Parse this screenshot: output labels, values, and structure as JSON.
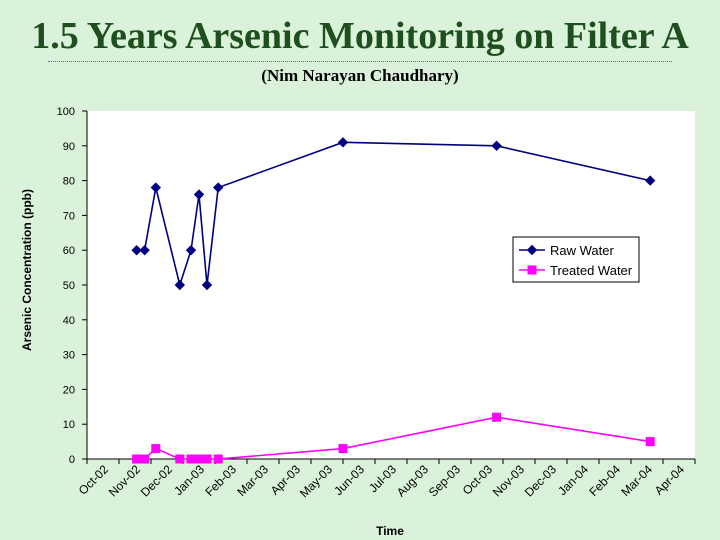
{
  "page": {
    "title": "1.5 Years Arsenic Monitoring on Filter A",
    "subtitle": "(Nim Narayan Chaudhary)"
  },
  "chart_data": {
    "type": "line",
    "title": "1.5 Years Arsenic Monitoring on Filter A",
    "subtitle": "(Nim Narayan Chaudhary)",
    "xlabel": "Time",
    "ylabel": "Arsenic Concentration (ppb)",
    "ylim": [
      0,
      100
    ],
    "yticks": [
      0,
      10,
      20,
      30,
      40,
      50,
      60,
      70,
      80,
      90,
      100
    ],
    "categories": [
      "Oct-02",
      "Nov-02",
      "Dec-02",
      "Jan-03",
      "Feb-03",
      "Mar-03",
      "Apr-03",
      "May-03",
      "Jun-03",
      "Jul-03",
      "Aug-03",
      "Sep-03",
      "Oct-03",
      "Nov-03",
      "Dec-03",
      "Jan-04",
      "Feb-04",
      "Mar-04",
      "Apr-04"
    ],
    "grid": false,
    "legend_position": "right",
    "series": [
      {
        "name": "Raw Water",
        "color": "#000080",
        "marker": "diamond",
        "points": [
          {
            "x": 1.55,
            "y": 60
          },
          {
            "x": 1.8,
            "y": 60
          },
          {
            "x": 2.15,
            "y": 78
          },
          {
            "x": 2.9,
            "y": 50
          },
          {
            "x": 3.25,
            "y": 60
          },
          {
            "x": 3.5,
            "y": 76
          },
          {
            "x": 3.75,
            "y": 50
          },
          {
            "x": 4.1,
            "y": 78
          },
          {
            "x": 8.0,
            "y": 91
          },
          {
            "x": 12.8,
            "y": 90
          },
          {
            "x": 17.6,
            "y": 80
          }
        ]
      },
      {
        "name": "Treated Water",
        "color": "#ff00ff",
        "marker": "square",
        "points": [
          {
            "x": 1.55,
            "y": 0
          },
          {
            "x": 1.8,
            "y": 0
          },
          {
            "x": 2.15,
            "y": 3
          },
          {
            "x": 2.9,
            "y": 0
          },
          {
            "x": 3.25,
            "y": 0
          },
          {
            "x": 3.5,
            "y": 0
          },
          {
            "x": 3.75,
            "y": 0
          },
          {
            "x": 4.1,
            "y": 0
          },
          {
            "x": 8.0,
            "y": 3
          },
          {
            "x": 12.8,
            "y": 12
          },
          {
            "x": 17.6,
            "y": 5
          }
        ]
      }
    ]
  }
}
